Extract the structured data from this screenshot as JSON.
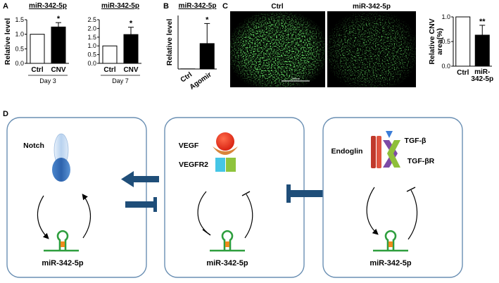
{
  "panels": {
    "a": "A",
    "b": "B",
    "c": "C",
    "d": "D"
  },
  "chart_data": [
    {
      "type": "bar",
      "panel": "A",
      "title": "miR-342-5p",
      "ylabel": "Relative level",
      "xlabel": "Day 3",
      "categories": [
        "Ctrl",
        "CNV"
      ],
      "values": [
        1.0,
        1.25
      ],
      "errors": [
        0,
        0.15
      ],
      "significance": [
        "",
        "*"
      ],
      "ylim": [
        0,
        1.5
      ],
      "yticks": [
        "0.0",
        "0.5",
        "1.0",
        "1.5"
      ],
      "fill": [
        "#ffffff",
        "#000000"
      ]
    },
    {
      "type": "bar",
      "panel": "A",
      "title": "miR-342-5p",
      "ylabel": "",
      "xlabel": "Day 7",
      "categories": [
        "Ctrl",
        "CNV"
      ],
      "values": [
        1.0,
        1.65
      ],
      "errors": [
        0,
        0.42
      ],
      "significance": [
        "",
        "*"
      ],
      "ylim": [
        0,
        2.5
      ],
      "yticks": [
        "0.0",
        "0.5",
        "1.0",
        "1.5",
        "2.0",
        "2.5"
      ],
      "fill": [
        "#ffffff",
        "#000000"
      ]
    },
    {
      "type": "bar",
      "panel": "B",
      "title": "miR-342-5p",
      "ylabel": "Relative level",
      "xlabel": "",
      "categories": [
        "Ctrl",
        "Agomir"
      ],
      "values": [
        1.0,
        190
      ],
      "errors": [
        0,
        150
      ],
      "significance": [
        "",
        "*"
      ],
      "ylim": [
        0,
        400
      ],
      "yticks": [],
      "fill": [
        "#ffffff",
        "#000000"
      ]
    },
    {
      "type": "bar",
      "panel": "C",
      "title": "",
      "ylabel": "Relative CNV area(%)",
      "xlabel": "",
      "categories": [
        "Ctrl",
        "miR-342-5p"
      ],
      "values": [
        1.0,
        0.63
      ],
      "errors": [
        0,
        0.2
      ],
      "significance": [
        "",
        "**"
      ],
      "ylim": [
        0,
        1.0
      ],
      "yticks": [
        "0.0",
        "0.5",
        "1.0"
      ],
      "fill": [
        "#ffffff",
        "#000000"
      ]
    }
  ],
  "micrographs": {
    "left_label": "Ctrl",
    "right_label": "miR-342-5p",
    "scale_bar": "200μm",
    "stain_color": "#2fd02f"
  },
  "diagram": {
    "mirna": "miR-342-5p",
    "box1_protein": "Notch",
    "box2_proteins": [
      "VEGF",
      "VEGFR2"
    ],
    "box3_proteins": [
      "Endoglin",
      "TGF-β",
      "TGF-βR"
    ],
    "connector_color": "#1f4e79",
    "box_border_color": "#6a8fb3"
  }
}
